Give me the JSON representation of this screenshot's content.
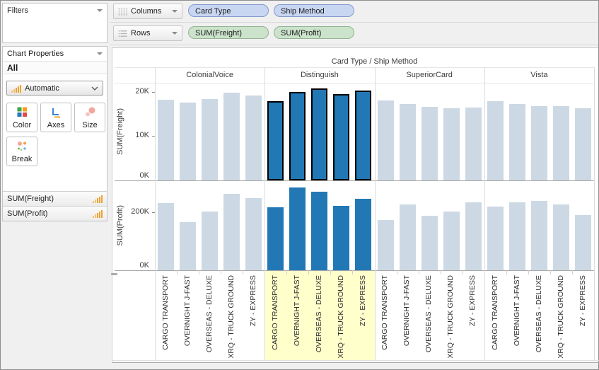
{
  "sidebar": {
    "filters_panel": {
      "title": "Filters"
    },
    "chart_properties": {
      "title": "Chart Properties",
      "scope": "All",
      "mark_type_dropdown": "Automatic",
      "buttons": [
        {
          "label": "Color"
        },
        {
          "label": "Axes"
        },
        {
          "label": "Size"
        },
        {
          "label": "Break"
        }
      ],
      "fields": [
        {
          "label": "SUM(Freight)"
        },
        {
          "label": "SUM(Profit)"
        }
      ]
    }
  },
  "shelves": {
    "columns": {
      "label": "Columns",
      "pills": [
        "Card Type",
        "Ship Method"
      ]
    },
    "rows": {
      "label": "Rows",
      "pills": [
        "SUM(Freight)",
        "SUM(Profit)"
      ]
    }
  },
  "chart_data": {
    "type": "bar",
    "title": "Card Type / Ship Method",
    "column_facets": [
      "ColonialVoice",
      "Distinguish",
      "SuperiorCard",
      "Vista"
    ],
    "categories": [
      "CARGO TRANSPORT",
      "OVERNIGHT J-FAST",
      "OVERSEAS - DELUXE",
      "XRQ - TRUCK GROUND",
      "ZY - EXPRESS"
    ],
    "grid": "off",
    "legend_position": "none",
    "rows": [
      {
        "key": "freight",
        "ylabel": "SUM(Freight)",
        "ylim": [
          0,
          22000
        ],
        "ticks": [
          {
            "value": 0,
            "label": "0K"
          },
          {
            "value": 10000,
            "label": "10K"
          },
          {
            "value": 20000,
            "label": "20K"
          }
        ],
        "values": {
          "ColonialVoice": [
            18100,
            17600,
            18300,
            19700,
            19100
          ],
          "Distinguish": [
            17900,
            20000,
            20700,
            19500,
            20200
          ],
          "SuperiorCard": [
            18000,
            17200,
            16600,
            16300,
            16400
          ],
          "Vista": [
            17900,
            17200,
            16700,
            16700,
            16300
          ]
        },
        "selection_outlined": true
      },
      {
        "key": "profit",
        "ylabel": "SUM(Profit)",
        "ylim": [
          0,
          310000
        ],
        "ticks": [
          {
            "value": 0,
            "label": "0K"
          },
          {
            "value": 200000,
            "label": "200K"
          }
        ],
        "values": {
          "ColonialVoice": [
            232000,
            167000,
            202000,
            263000,
            249000
          ],
          "Distinguish": [
            217000,
            285000,
            271000,
            222000,
            246000
          ],
          "SuperiorCard": [
            174000,
            227000,
            188000,
            203000,
            234000
          ],
          "Vista": [
            220000,
            234000,
            239000,
            227000,
            191000
          ]
        },
        "selection_outlined": false
      }
    ],
    "selection": {
      "facet": "Distinguish",
      "highlight_labels": true
    },
    "colors": {
      "bar_default": "#ccd9e4",
      "bar_selected": "#2178b5",
      "selection_outline": "#000000",
      "label_highlight": "#ffffcb"
    }
  }
}
